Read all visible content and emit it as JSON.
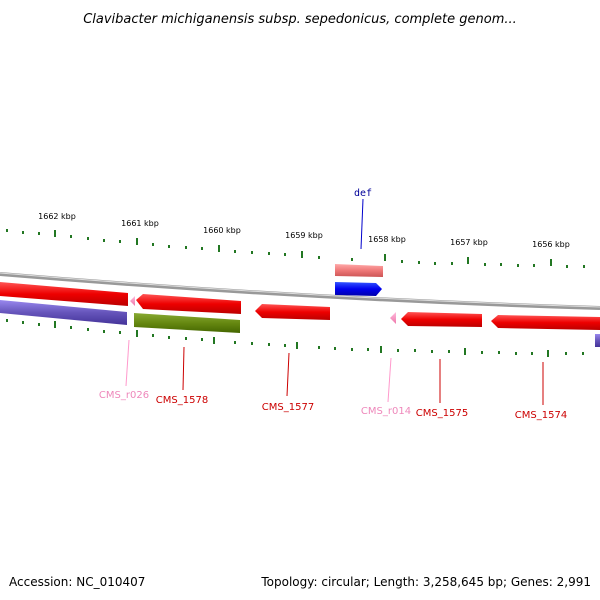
{
  "title": "Clavibacter michiganensis subsp. sepedonicus, complete genom...",
  "footer": {
    "accession": "Accession: NC_010407",
    "topology": "Topology: circular; Length: 3,258,645 bp; Genes: 2,991"
  },
  "tick_labels": [
    "1662 kbp",
    "1661 kbp",
    "1660 kbp",
    "1659 kbp",
    "1658 kbp",
    "1657 kbp",
    "1656 kbp"
  ],
  "feature_labels": {
    "def": "def",
    "cms_r026": "CMS_r026",
    "cms_1578": "CMS_1578",
    "cms_1577": "CMS_1577",
    "cms_r014": "CMS_r014",
    "cms_1575": "CMS_1575",
    "cms_1574": "CMS_1574"
  },
  "colors": {
    "cds": "#ff0000",
    "cds_label": "#cc0000",
    "rna": "#ff88cc",
    "rna_label": "#ee88bb",
    "gene_pink": "#ee7777",
    "def_blue": "#0000ee",
    "purple": "#7766cc",
    "olive": "#668811",
    "tick": "#227722",
    "backbone": "#888888"
  }
}
